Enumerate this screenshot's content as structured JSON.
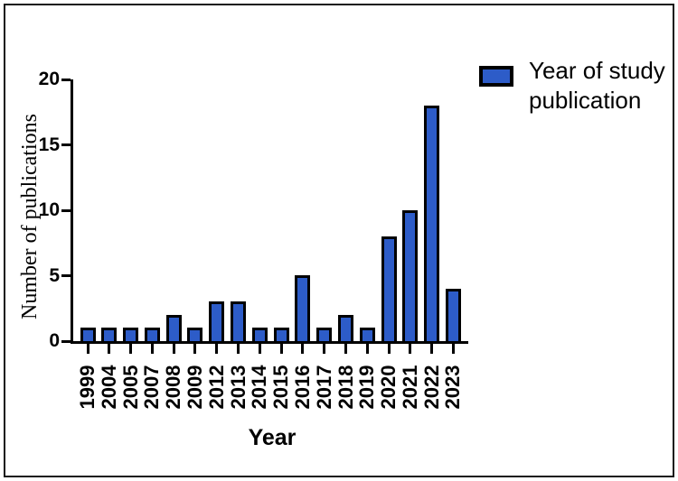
{
  "chart_data": {
    "type": "bar",
    "title": "",
    "xlabel": "Year",
    "ylabel": "Number of publications",
    "categories": [
      "1999",
      "2004",
      "2005",
      "2007",
      "2008",
      "2009",
      "2012",
      "2013",
      "2014",
      "2015",
      "2016",
      "2017",
      "2018",
      "2019",
      "2020",
      "2021",
      "2022",
      "2023"
    ],
    "values": [
      1,
      1,
      1,
      1,
      2,
      1,
      3,
      3,
      1,
      1,
      5,
      1,
      2,
      1,
      8,
      10,
      18,
      4
    ],
    "ylim": [
      0,
      20
    ],
    "yticks": [
      0,
      5,
      10,
      15,
      20
    ],
    "grid": false,
    "legend": {
      "position": "top-right",
      "label": "Year of study publication",
      "line1": "Year of study",
      "line2": "publication"
    },
    "colors": {
      "bar_fill": "#2D5CC8",
      "bar_border": "#000000",
      "axis": "#000000",
      "text": "#000000",
      "frame_border": "#161616",
      "background": "#ffffff"
    }
  }
}
